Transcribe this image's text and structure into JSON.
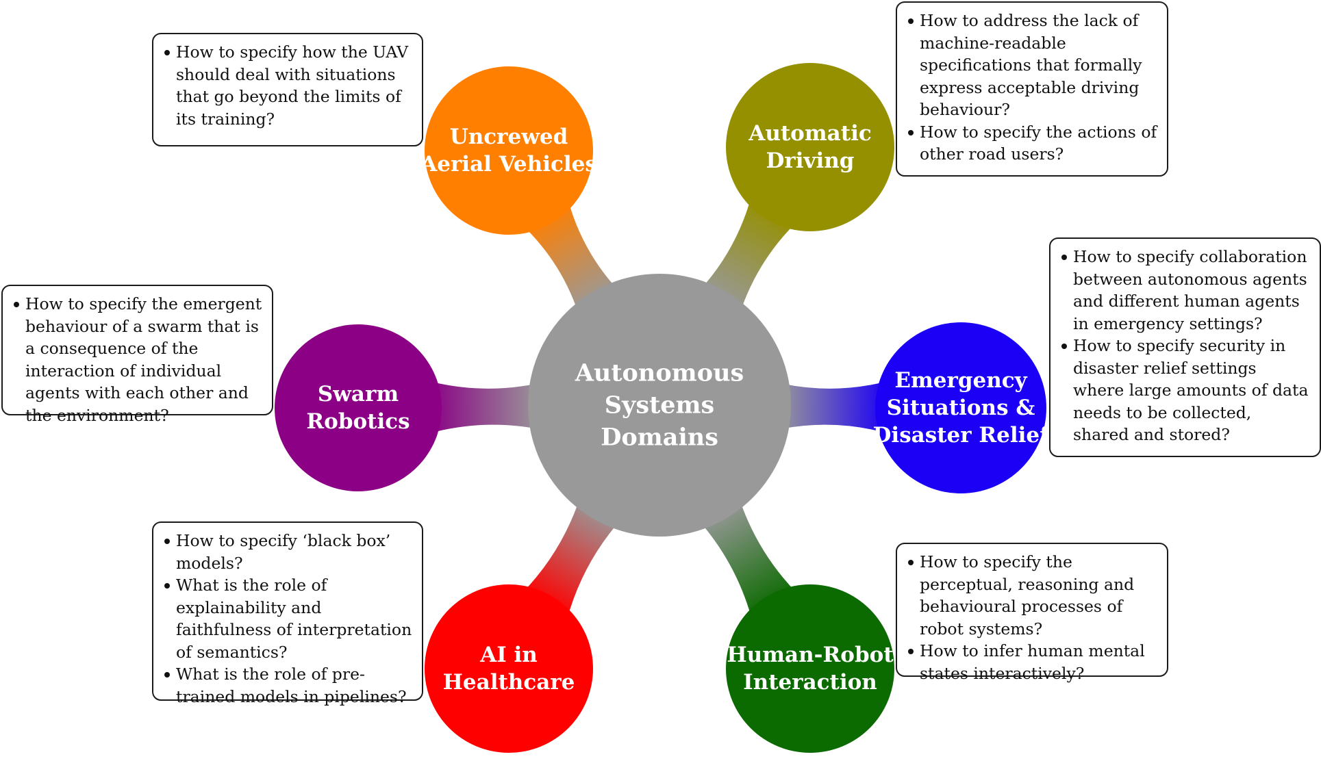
{
  "center": {
    "lines": [
      "Autonomous",
      "Systems",
      "Domains"
    ],
    "color": "#999999"
  },
  "domains": [
    {
      "id": "uav",
      "lines": [
        "Uncrewed",
        "Aerial Vehicles"
      ],
      "color": "#ff7f00",
      "questions": [
        "How to specify how the UAV should deal with situations that go beyond the limits of its training?"
      ]
    },
    {
      "id": "driving",
      "lines": [
        "Automatic",
        "Driving"
      ],
      "color": "#959000",
      "questions": [
        "How to address the lack of machine-readable specifications that formally express acceptable driving behaviour?",
        "How to specify the actions of other road users?"
      ]
    },
    {
      "id": "emergency",
      "lines": [
        "Emergency",
        "Situations &",
        "Disaster Relief"
      ],
      "color": "#1c00f5",
      "questions": [
        "How to specify collaboration between autonomous agents and different human agents in emergency settings?",
        "How to specify security in disaster relief settings where large amounts of data needs to be collected, shared and stored?"
      ]
    },
    {
      "id": "hri",
      "lines": [
        "Human-Robot",
        "Interaction"
      ],
      "color": "#0b6a00",
      "questions": [
        "How to specify the perceptual, reasoning and behavioural processes of robot systems?",
        "How to infer human mental states interactively?"
      ]
    },
    {
      "id": "healthcare",
      "lines": [
        "AI in",
        "Healthcare"
      ],
      "color": "#ff0000",
      "questions": [
        "How to specify ‘black box’ models?",
        "What is the role of explainability and faithfulness of interpretation of semantics?",
        "What is the role of pre-trained models in pipelines?"
      ]
    },
    {
      "id": "swarm",
      "lines": [
        "Swarm",
        "Robotics"
      ],
      "color": "#8b0085",
      "questions": [
        "How to specify the emergent behaviour of a swarm that is a consequence of the interaction of individual agents with each other and the environment?"
      ]
    }
  ]
}
